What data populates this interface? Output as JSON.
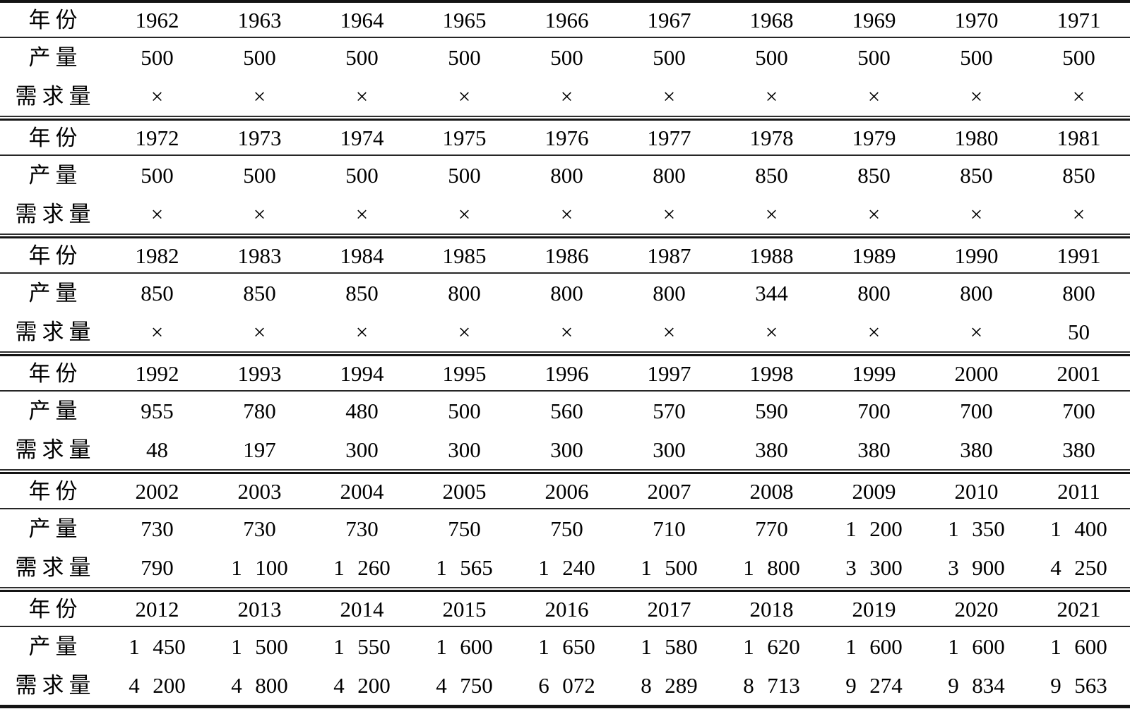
{
  "chart_data": {
    "type": "table",
    "row_labels": {
      "year": "年份",
      "production": "产量",
      "demand": "需求量"
    },
    "placeholder_symbol": "×",
    "blocks": [
      {
        "years": [
          "1962",
          "1963",
          "1964",
          "1965",
          "1966",
          "1967",
          "1968",
          "1969",
          "1970",
          "1971"
        ],
        "production": [
          "500",
          "500",
          "500",
          "500",
          "500",
          "500",
          "500",
          "500",
          "500",
          "500"
        ],
        "demand": [
          "×",
          "×",
          "×",
          "×",
          "×",
          "×",
          "×",
          "×",
          "×",
          "×"
        ]
      },
      {
        "years": [
          "1972",
          "1973",
          "1974",
          "1975",
          "1976",
          "1977",
          "1978",
          "1979",
          "1980",
          "1981"
        ],
        "production": [
          "500",
          "500",
          "500",
          "500",
          "800",
          "800",
          "850",
          "850",
          "850",
          "850"
        ],
        "demand": [
          "×",
          "×",
          "×",
          "×",
          "×",
          "×",
          "×",
          "×",
          "×",
          "×"
        ]
      },
      {
        "years": [
          "1982",
          "1983",
          "1984",
          "1985",
          "1986",
          "1987",
          "1988",
          "1989",
          "1990",
          "1991"
        ],
        "production": [
          "850",
          "850",
          "850",
          "800",
          "800",
          "800",
          "344",
          "800",
          "800",
          "800"
        ],
        "demand": [
          "×",
          "×",
          "×",
          "×",
          "×",
          "×",
          "×",
          "×",
          "×",
          "50"
        ]
      },
      {
        "years": [
          "1992",
          "1993",
          "1994",
          "1995",
          "1996",
          "1997",
          "1998",
          "1999",
          "2000",
          "2001"
        ],
        "production": [
          "955",
          "780",
          "480",
          "500",
          "560",
          "570",
          "590",
          "700",
          "700",
          "700"
        ],
        "demand": [
          "48",
          "197",
          "300",
          "300",
          "300",
          "300",
          "380",
          "380",
          "380",
          "380"
        ]
      },
      {
        "years": [
          "2002",
          "2003",
          "2004",
          "2005",
          "2006",
          "2007",
          "2008",
          "2009",
          "2010",
          "2011"
        ],
        "production": [
          "730",
          "730",
          "730",
          "750",
          "750",
          "710",
          "770",
          "1 200",
          "1 350",
          "1 400"
        ],
        "demand": [
          "790",
          "1 100",
          "1 260",
          "1 565",
          "1 240",
          "1 500",
          "1 800",
          "3 300",
          "3 900",
          "4 250"
        ]
      },
      {
        "years": [
          "2012",
          "2013",
          "2014",
          "2015",
          "2016",
          "2017",
          "2018",
          "2019",
          "2020",
          "2021"
        ],
        "production": [
          "1 450",
          "1 500",
          "1 550",
          "1 600",
          "1 650",
          "1 580",
          "1 620",
          "1 600",
          "1 600",
          "1 600"
        ],
        "demand": [
          "4 200",
          "4 800",
          "4 200",
          "4 750",
          "6 072",
          "8 289",
          "8 713",
          "9 274",
          "9 834",
          "9 563"
        ]
      }
    ]
  }
}
